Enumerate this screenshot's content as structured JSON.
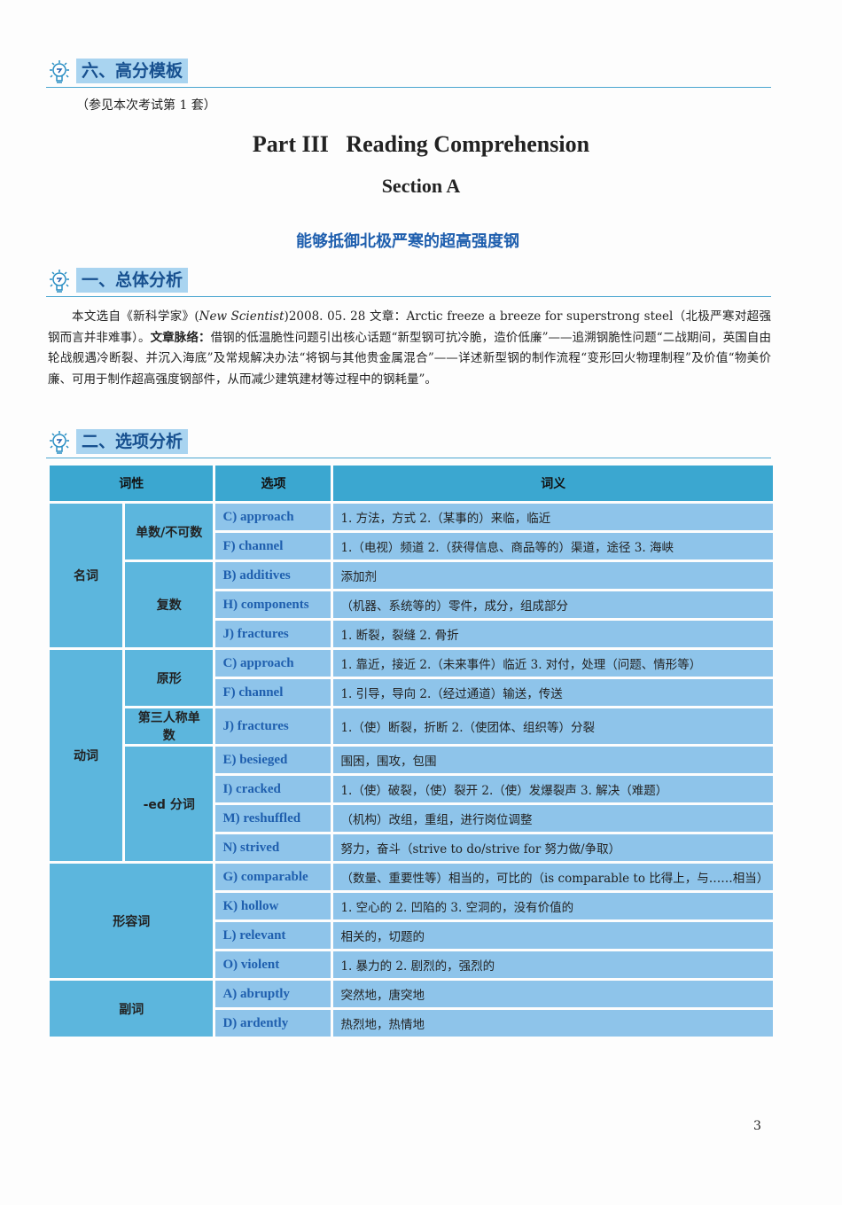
{
  "section6": {
    "title": "六、高分模板",
    "note": "（参见本次考试第 1 套）"
  },
  "part_title": "Part III   Reading Comprehension",
  "section_title": "Section A",
  "article_title": "能够抵御北极严寒的超高强度钢",
  "section1": {
    "title": "一、总体分析",
    "para_a": "本文选自《新科学家》(",
    "para_italic": "New Scientist",
    "para_b": ")2008. 05. 28 文章：Arctic freeze a breeze for superstrong steel（北极严寒对超强钢而言并非难事）。",
    "para_bold": "文章脉络：",
    "para_c": "借钢的低温脆性问题引出核心话题“新型钢可抗冷脆，造价低廉”——追溯钢脆性问题“二战期间，英国自由轮战舰遇冷断裂、并沉入海底”及常规解决办法“将钢与其他贵金属混合”——详述新型钢的制作流程“变形回火物理制程”及价值“物美价廉、可用于制作超高强度钢部件，从而减少建筑建材等过程中的钢耗量”。"
  },
  "section2": {
    "title": "二、选项分析"
  },
  "table": {
    "headers": [
      "词性",
      "选项",
      "词义"
    ],
    "groups": {
      "noun": "名词",
      "noun_sg": "单数/不可数",
      "noun_pl": "复数",
      "verb": "动词",
      "verb_base": "原形",
      "verb_3rd": "第三人称单数",
      "verb_ed": "-ed 分词",
      "adj": "形容词",
      "adv": "副词"
    },
    "rows": [
      {
        "opt": "C) approach",
        "mean": "1. 方法，方式 2.（某事的）来临，临近"
      },
      {
        "opt": "F) channel",
        "mean": "1.（电视）频道 2.（获得信息、商品等的）渠道，途径 3. 海峡"
      },
      {
        "opt": "B) additives",
        "mean": "添加剂"
      },
      {
        "opt": "H) components",
        "mean": "（机器、系统等的）零件，成分，组成部分"
      },
      {
        "opt": "J) fractures",
        "mean": "1. 断裂，裂缝 2. 骨折"
      },
      {
        "opt": "C) approach",
        "mean": "1. 靠近，接近 2.（未来事件）临近 3. 对付，处理（问题、情形等）"
      },
      {
        "opt": "F) channel",
        "mean": "1. 引导，导向 2.（经过通道）输送，传送"
      },
      {
        "opt": "J) fractures",
        "mean": "1.（使）断裂，折断 2.（使团体、组织等）分裂"
      },
      {
        "opt": "E) besieged",
        "mean": "围困，围攻，包围"
      },
      {
        "opt": "I) cracked",
        "mean": "1.（使）破裂，（使）裂开 2.（使）发爆裂声 3. 解决（难题）"
      },
      {
        "opt": "M) reshuffled",
        "mean": "（机构）改组，重组，进行岗位调整"
      },
      {
        "opt": "N) strived",
        "mean": "努力，奋斗（strive to do/strive for 努力做/争取）"
      },
      {
        "opt": "G) comparable",
        "mean": "（数量、重要性等）相当的，可比的（is comparable to 比得上，与……相当）"
      },
      {
        "opt": "K) hollow",
        "mean": "1. 空心的 2. 凹陷的 3. 空洞的，没有价值的"
      },
      {
        "opt": "L) relevant",
        "mean": "相关的，切题的"
      },
      {
        "opt": "O) violent",
        "mean": "1. 暴力的 2. 剧烈的，强烈的"
      },
      {
        "opt": "A) abruptly",
        "mean": "突然地，唐突地"
      },
      {
        "opt": "D) ardently",
        "mean": "热烈地，热情地"
      }
    ]
  },
  "page_number": "3",
  "colors": {
    "accent": "#1f5fae",
    "header": "#3ba7d0",
    "category": "#5cb6dd",
    "cell": "#8ec4ea"
  }
}
